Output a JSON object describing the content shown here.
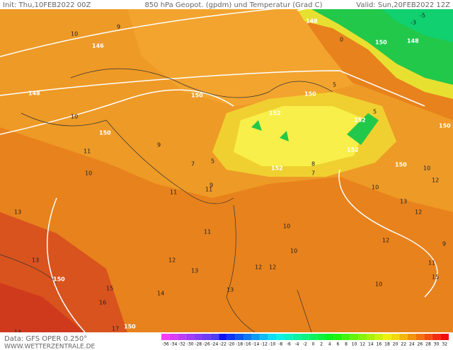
{
  "header": {
    "init": "Init: Thu,10FEB2022 00Z",
    "title": "850 hPa Geopot. (gpdm) und Temperatur (Grad C)",
    "valid": "Valid: Sun,20FEB2022 12Z"
  },
  "footer": {
    "data": "Data: GFS OPER 0.250°",
    "site": "WWW.WETTERZENTRALE.DE"
  },
  "colorbar": {
    "ticks": [
      -36,
      -34,
      -32,
      -30,
      -28,
      -26,
      -24,
      -22,
      -20,
      -18,
      -16,
      -14,
      -12,
      -10,
      -8,
      -6,
      -4,
      -2,
      0,
      2,
      4,
      6,
      8,
      10,
      12,
      14,
      16,
      18,
      20,
      22,
      24,
      26,
      28,
      30,
      32
    ]
  },
  "map": {
    "height_labels": [
      148,
      146,
      148,
      150,
      150,
      150,
      152,
      152,
      152,
      152,
      150,
      150,
      150,
      150,
      148,
      150
    ],
    "temperature_labels": [
      10,
      9,
      10,
      11,
      10,
      9,
      7,
      11,
      9,
      5,
      7,
      10,
      11,
      13,
      12,
      13,
      11,
      12,
      13,
      14,
      15,
      16,
      17,
      10,
      11,
      12,
      13,
      12,
      10,
      9,
      10,
      12,
      13,
      14,
      -5,
      -3,
      0,
      5,
      5,
      8,
      10,
      12,
      15
    ]
  }
}
